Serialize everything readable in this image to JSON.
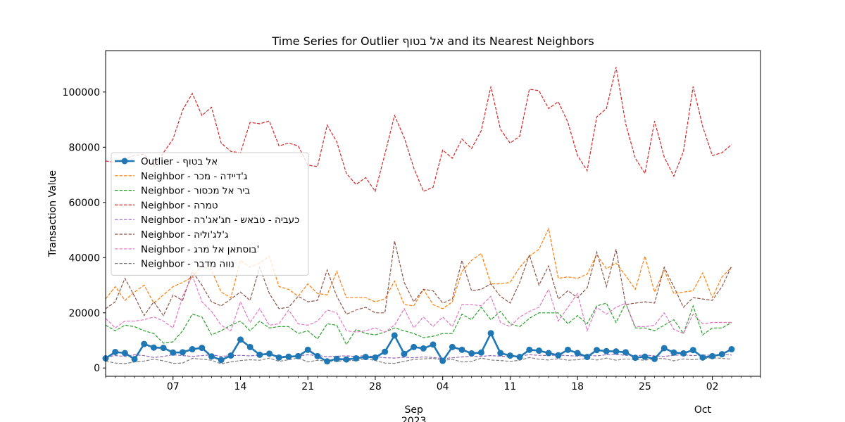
{
  "chart_data": {
    "type": "line",
    "title": "Time Series for Outlier אל בטוף and its Nearest Neighbors",
    "ylabel": "Transaction Value",
    "xlabel": "",
    "ylim": [
      -3000,
      115000
    ],
    "xlim": [
      "2023-07-31",
      "2023-10-07"
    ],
    "y_ticks": [
      0,
      20000,
      40000,
      60000,
      80000,
      100000
    ],
    "x_ticks": [
      {
        "date": "2023-08-07",
        "label": "07"
      },
      {
        "date": "2023-08-14",
        "label": "14"
      },
      {
        "date": "2023-08-21",
        "label": "21"
      },
      {
        "date": "2023-08-28",
        "label": "28"
      },
      {
        "date": "2023-09-04",
        "label": "04"
      },
      {
        "date": "2023-09-11",
        "label": "11"
      },
      {
        "date": "2023-09-18",
        "label": "18"
      },
      {
        "date": "2023-09-25",
        "label": "25"
      },
      {
        "date": "2023-10-02",
        "label": "02"
      }
    ],
    "month_labels": [
      {
        "date": "2023-09-01",
        "label": "Sep",
        "sublabel": "2023"
      },
      {
        "date": "2023-10-01",
        "label": "Oct",
        "sublabel": ""
      }
    ],
    "grid": false,
    "legend_position": "center-left",
    "x_start_date": "2023-07-31",
    "series": [
      {
        "name": "Outlier - אל בטוף",
        "color": "#1f77b4",
        "style": "solid-marker",
        "values": [
          3500,
          5800,
          5400,
          3200,
          8700,
          7400,
          7300,
          5600,
          5700,
          6800,
          7300,
          4200,
          2900,
          4500,
          10300,
          7600,
          4800,
          5200,
          3800,
          4100,
          4300,
          6600,
          4300,
          2400,
          3300,
          3100,
          3500,
          4000,
          3800,
          5900,
          11800,
          5100,
          7600,
          7100,
          8500,
          2600,
          7600,
          6600,
          5300,
          5600,
          12600,
          5400,
          4500,
          4000,
          6600,
          6300,
          5400,
          4600,
          6600,
          5400,
          4000,
          6500,
          6100,
          6000,
          5700,
          3700,
          4100,
          3300,
          7200,
          5600,
          5300,
          6500,
          3800,
          4300,
          5000,
          6800
        ]
      },
      {
        "name": "Neighbor - ג'דיידה - מכר",
        "color": "#ff7f0e",
        "style": "dashed",
        "values": [
          25000,
          29500,
          24500,
          27500,
          30000,
          23500,
          26500,
          29500,
          31000,
          33000,
          37000,
          35500,
          27500,
          25500,
          39000,
          36500,
          38000,
          40500,
          29500,
          28500,
          26000,
          30500,
          27000,
          26500,
          35000,
          25500,
          25500,
          25500,
          24000,
          25000,
          31500,
          23000,
          22500,
          28500,
          23000,
          21500,
          24000,
          35000,
          39000,
          41500,
          30500,
          30500,
          31000,
          36500,
          40500,
          43000,
          50500,
          32500,
          33000,
          32500,
          34000,
          41000,
          36000,
          38000,
          33500,
          28500,
          40500,
          27500,
          35500,
          27000,
          27500,
          28000,
          34500,
          25500,
          33000,
          36500
        ]
      },
      {
        "name": "Neighbor - ביר אל מכסור",
        "color": "#2ca02c",
        "style": "dashed",
        "values": [
          15500,
          13500,
          15500,
          15000,
          13500,
          12500,
          9000,
          9500,
          13500,
          19500,
          18500,
          12000,
          13500,
          15500,
          17000,
          13500,
          17000,
          14500,
          15000,
          15000,
          12500,
          13500,
          10500,
          16000,
          15500,
          8500,
          14000,
          12500,
          12000,
          13000,
          14500,
          13500,
          12500,
          11000,
          11500,
          12500,
          12500,
          19500,
          17500,
          22000,
          17500,
          20500,
          16000,
          15000,
          18000,
          20000,
          20000,
          20000,
          16000,
          19000,
          16000,
          22500,
          23500,
          16500,
          23500,
          14500,
          14500,
          13500,
          15500,
          17500,
          12500,
          22500,
          12000,
          14500,
          14500,
          16500
        ]
      },
      {
        "name": "Neighbor - טמרה",
        "color": "#d62728",
        "style": "dashed",
        "values": [
          75000,
          74500,
          76000,
          77000,
          77500,
          73000,
          78000,
          83000,
          93500,
          99500,
          91500,
          94500,
          81500,
          78500,
          78000,
          89000,
          88500,
          89500,
          80500,
          81500,
          80500,
          73500,
          73000,
          88000,
          82000,
          70500,
          66500,
          69000,
          64000,
          77500,
          91500,
          83500,
          72500,
          64000,
          65500,
          79000,
          76000,
          83000,
          79500,
          86000,
          102000,
          86500,
          81500,
          84000,
          101000,
          100500,
          94000,
          96500,
          89000,
          77000,
          71500,
          91000,
          94000,
          109000,
          88500,
          76000,
          70500,
          89500,
          76500,
          69500,
          78500,
          102000,
          87500,
          77000,
          78000,
          81000
        ]
      },
      {
        "name": "Neighbor - כעביה - טבאש - חג'אג'רה",
        "color": "#9467bd",
        "style": "dashed",
        "values": [
          4000,
          4500,
          4200,
          4800,
          4500,
          3800,
          4200,
          4800,
          4500,
          4200,
          4500,
          4800,
          4200,
          4500,
          4600,
          4400,
          4700,
          4900,
          4300,
          4200,
          4400,
          4800,
          4500,
          4100,
          4300,
          4400,
          4200,
          4500,
          4100,
          3700,
          3600,
          3900,
          3700,
          4000,
          3800,
          3400,
          3700,
          4000,
          4300,
          4200,
          4500,
          4300,
          4100,
          4400,
          4800,
          4600,
          4500,
          4700,
          4500,
          4300,
          4600,
          4400,
          4800,
          4900,
          4600,
          4500,
          4700,
          4400,
          4200,
          4600,
          4800,
          4500,
          4700,
          4600,
          4900,
          4700
        ]
      },
      {
        "name": "Neighbor - ג'לג'וליה",
        "color": "#8c564b",
        "style": "dashed",
        "values": [
          21500,
          24000,
          32500,
          26000,
          19000,
          24000,
          19000,
          26500,
          24500,
          35000,
          30000,
          24000,
          22500,
          25000,
          27500,
          24500,
          36500,
          27000,
          21500,
          22000,
          26000,
          24000,
          24500,
          35500,
          26000,
          19500,
          21000,
          22000,
          20000,
          20000,
          46000,
          31000,
          24000,
          28500,
          28000,
          23500,
          25000,
          39000,
          28000,
          28500,
          30500,
          26000,
          23500,
          31000,
          41000,
          30000,
          37000,
          25000,
          28000,
          25500,
          29000,
          42000,
          29500,
          43000,
          23000,
          23500,
          24000,
          23500,
          36500,
          29500,
          22000,
          25500,
          25000,
          24500,
          29500,
          37000
        ]
      },
      {
        "name": "Neighbor - בוסתאן אל מרג'",
        "color": "#e377c2",
        "style": "dashed",
        "values": [
          18000,
          14500,
          17000,
          17000,
          17500,
          18500,
          17000,
          14500,
          26000,
          33500,
          24000,
          20500,
          15500,
          13500,
          24000,
          16500,
          21500,
          15500,
          16000,
          21000,
          16000,
          15500,
          17000,
          21000,
          20000,
          13500,
          13000,
          13500,
          14500,
          13000,
          15500,
          21500,
          14500,
          18500,
          15000,
          18500,
          15000,
          23000,
          23000,
          22500,
          26000,
          16500,
          15000,
          18500,
          20500,
          22000,
          28500,
          17000,
          22000,
          27000,
          13500,
          22000,
          19500,
          22000,
          23500,
          15000,
          15000,
          15500,
          20000,
          14000,
          12500,
          19500,
          16000,
          16500,
          16500,
          16500
        ]
      },
      {
        "name": "Neighbor - נווה מדבר",
        "color": "#7f7f7f",
        "style": "dashed",
        "values": [
          2500,
          1800,
          1600,
          2200,
          2500,
          3200,
          2600,
          1700,
          1800,
          3500,
          3200,
          2800,
          1500,
          2200,
          2700,
          3000,
          2800,
          3600,
          2400,
          3000,
          3600,
          2200,
          2800,
          2500,
          2400,
          2900,
          2600,
          3400,
          2700,
          1800,
          1700,
          2400,
          3100,
          3300,
          3500,
          2800,
          3100,
          2200,
          2400,
          3600,
          2900,
          2700,
          2400,
          2800,
          3800,
          3200,
          2900,
          3400,
          2800,
          3000,
          3500,
          2900,
          3600,
          2800,
          3300,
          3100,
          2800,
          3500,
          3400,
          2600,
          3300,
          3000,
          3400,
          3700,
          3500,
          3200
        ]
      }
    ]
  }
}
